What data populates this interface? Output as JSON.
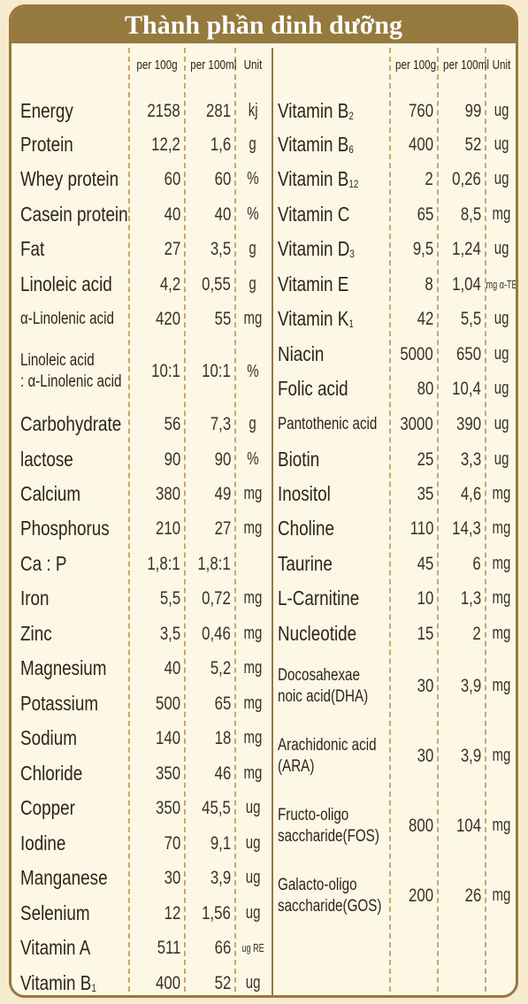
{
  "title": "Thành phần dinh dưỡng",
  "headers": {
    "per100g": "per 100g",
    "per100ml": "per 100ml",
    "unit": "Unit"
  },
  "left_rows": [
    {
      "name": "Energy",
      "g": "2158",
      "ml": "281",
      "unit": "kj"
    },
    {
      "name": "Protein",
      "g": "12,2",
      "ml": "1,6",
      "unit": "g"
    },
    {
      "name": "Whey protein",
      "g": "60",
      "ml": "60",
      "unit": "%"
    },
    {
      "name": "Casein protein",
      "g": "40",
      "ml": "40",
      "unit": "%"
    },
    {
      "name": "Fat",
      "g": "27",
      "ml": "3,5",
      "unit": "g"
    },
    {
      "name": "Linoleic acid",
      "g": "4,2",
      "ml": "0,55",
      "unit": "g"
    },
    {
      "name": "α-Linolenic acid",
      "g": "420",
      "ml": "55",
      "unit": "mg"
    },
    {
      "name": "Linoleic acid",
      "name2": ": α-Linolenic acid",
      "g": "10:1",
      "ml": "10:1",
      "unit": "%"
    },
    {
      "name": "Carbohydrate",
      "g": "56",
      "ml": "7,3",
      "unit": "g"
    },
    {
      "name": "lactose",
      "g": "90",
      "ml": "90",
      "unit": "%"
    },
    {
      "name": "Calcium",
      "g": "380",
      "ml": "49",
      "unit": "mg"
    },
    {
      "name": "Phosphorus",
      "g": "210",
      "ml": "27",
      "unit": "mg"
    },
    {
      "name": "Ca : P",
      "g": "1,8:1",
      "ml": "1,8:1",
      "unit": ""
    },
    {
      "name": "Iron",
      "g": "5,5",
      "ml": "0,72",
      "unit": "mg"
    },
    {
      "name": "Zinc",
      "g": "3,5",
      "ml": "0,46",
      "unit": "mg"
    },
    {
      "name": "Magnesium",
      "g": "40",
      "ml": "5,2",
      "unit": "mg"
    },
    {
      "name": "Potassium",
      "g": "500",
      "ml": "65",
      "unit": "mg"
    },
    {
      "name": "Sodium",
      "g": "140",
      "ml": "18",
      "unit": "mg"
    },
    {
      "name": "Chloride",
      "g": "350",
      "ml": "46",
      "unit": "mg"
    },
    {
      "name": "Copper",
      "g": "350",
      "ml": "45,5",
      "unit": "ug"
    },
    {
      "name": "Iodine",
      "g": "70",
      "ml": "9,1",
      "unit": "ug"
    },
    {
      "name": "Manganese",
      "g": "30",
      "ml": "3,9",
      "unit": "ug"
    },
    {
      "name": "Selenium",
      "g": "12",
      "ml": "1,56",
      "unit": "ug"
    },
    {
      "name": "Vitamin A",
      "g": "511",
      "ml": "66",
      "unit": "ug RE"
    },
    {
      "name": "Vitamin B",
      "sub": "1",
      "g": "400",
      "ml": "52",
      "unit": "ug"
    }
  ],
  "right_rows": [
    {
      "name": "Vitamin B",
      "sub": "2",
      "g": "760",
      "ml": "99",
      "unit": "ug"
    },
    {
      "name": "Vitamin B",
      "sub": "6",
      "g": "400",
      "ml": "52",
      "unit": "ug"
    },
    {
      "name": "Vitamin B",
      "sub": "12",
      "g": "2",
      "ml": "0,26",
      "unit": "ug"
    },
    {
      "name": "Vitamin C",
      "g": "65",
      "ml": "8,5",
      "unit": "mg"
    },
    {
      "name": "Vitamin D",
      "sub": "3",
      "g": "9,5",
      "ml": "1,24",
      "unit": "ug"
    },
    {
      "name": "Vitamin E",
      "g": "8",
      "ml": "1,04",
      "unit": "mg α-TE"
    },
    {
      "name": "Vitamin K",
      "sub": "1",
      "g": "42",
      "ml": "5,5",
      "unit": "ug"
    },
    {
      "name": "Niacin",
      "g": "5000",
      "ml": "650",
      "unit": "ug"
    },
    {
      "name": "Folic acid",
      "g": "80",
      "ml": "10,4",
      "unit": "ug"
    },
    {
      "name": "Pantothenic acid",
      "g": "3000",
      "ml": "390",
      "unit": "ug"
    },
    {
      "name": "Biotin",
      "g": "25",
      "ml": "3,3",
      "unit": "ug"
    },
    {
      "name": "Inositol",
      "g": "35",
      "ml": "4,6",
      "unit": "mg"
    },
    {
      "name": "Choline",
      "g": "110",
      "ml": "14,3",
      "unit": "mg"
    },
    {
      "name": "Taurine",
      "g": "45",
      "ml": "6",
      "unit": "mg"
    },
    {
      "name": "L-Carnitine",
      "g": "10",
      "ml": "1,3",
      "unit": "mg"
    },
    {
      "name": "Nucleotide",
      "g": "15",
      "ml": "2",
      "unit": "mg"
    },
    {
      "name": "Docosahexae",
      "name2": "noic acid(DHA)",
      "g": "30",
      "ml": "3,9",
      "unit": "mg"
    },
    {
      "name": "Arachidonic acid",
      "name2": "(ARA)",
      "g": "30",
      "ml": "3,9",
      "unit": "mg"
    },
    {
      "name": "Fructo-oligo",
      "name2": "saccharide(FOS)",
      "g": "800",
      "ml": "104",
      "unit": "mg"
    },
    {
      "name": "Galacto-oligo",
      "name2": "saccharide(GOS)",
      "g": "200",
      "ml": "26",
      "unit": "mg"
    }
  ]
}
